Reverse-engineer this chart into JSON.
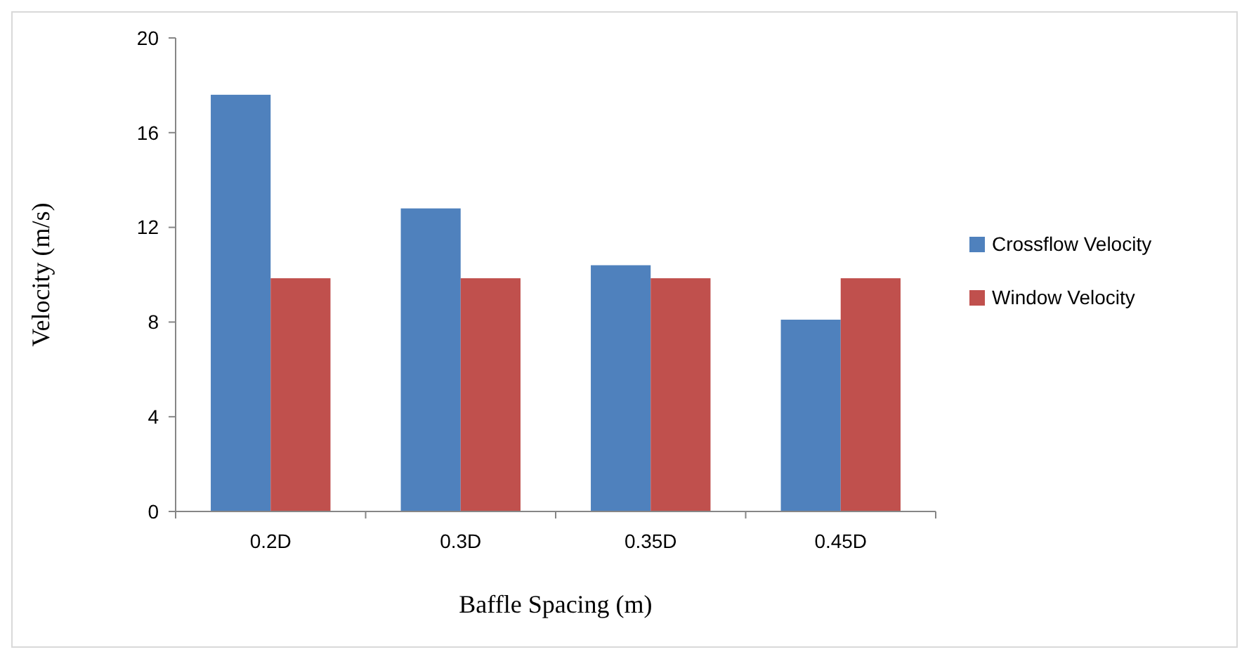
{
  "chart_data": {
    "type": "bar",
    "xlabel": "Baffle Spacing (m)",
    "ylabel": "Velocity (m/s)",
    "categories": [
      "0.2D",
      "0.3D",
      "0.35D",
      "0.45D"
    ],
    "series": [
      {
        "name": "Crossflow Velocity",
        "color": "#4f81bd",
        "values": [
          17.6,
          12.8,
          10.4,
          8.1
        ]
      },
      {
        "name": "Window Velocity",
        "color": "#c0504d",
        "values": [
          9.85,
          9.85,
          9.85,
          9.85
        ]
      }
    ],
    "ylim": [
      0,
      20
    ],
    "yticks": [
      0,
      4,
      8,
      12,
      16,
      20
    ],
    "grid": false,
    "legend": "right"
  }
}
